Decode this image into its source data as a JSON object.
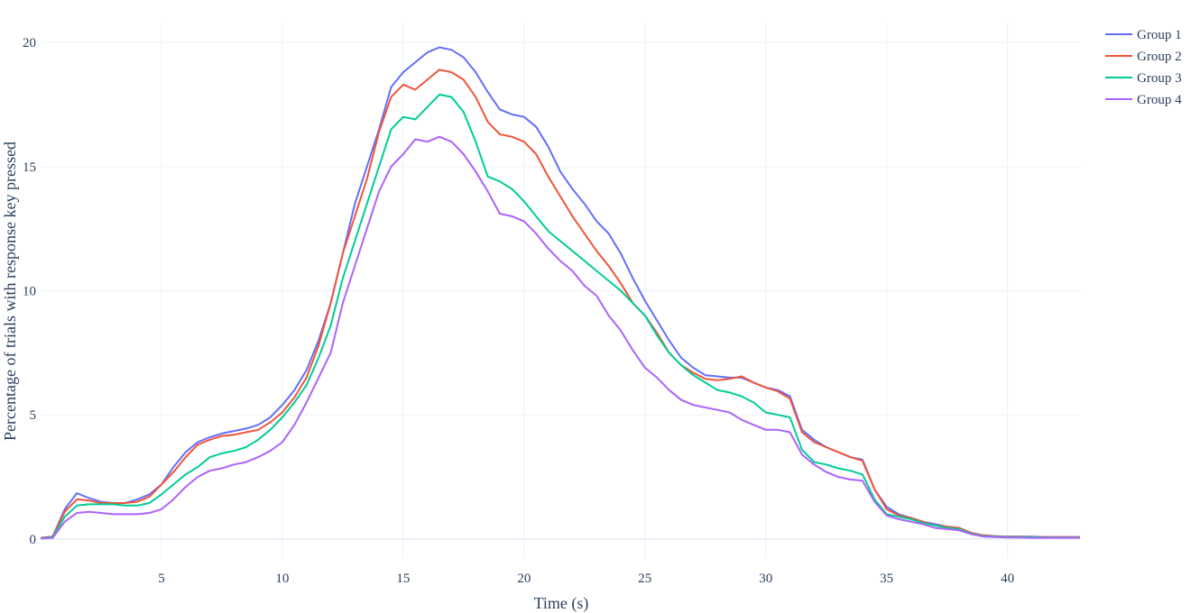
{
  "chart_data": {
    "type": "line",
    "xlabel": "Time (s)",
    "ylabel": "Percentage of trials with response key pressed",
    "xlim": [
      0,
      43
    ],
    "ylim": [
      -0.8,
      20.8
    ],
    "xticks": [
      5,
      10,
      15,
      20,
      25,
      30,
      35,
      40
    ],
    "yticks": [
      0,
      5,
      10,
      15,
      20
    ],
    "grid": true,
    "legend_position": "top-right",
    "x": [
      0,
      0.5,
      1,
      1.5,
      2,
      2.5,
      3,
      3.5,
      4,
      4.5,
      5,
      5.5,
      6,
      6.5,
      7,
      7.5,
      8,
      8.5,
      9,
      9.5,
      10,
      10.5,
      11,
      11.5,
      12,
      12.5,
      13,
      13.5,
      14,
      14.5,
      15,
      15.5,
      16,
      16.5,
      17,
      17.5,
      18,
      18.5,
      19,
      19.5,
      20,
      20.5,
      21,
      21.5,
      22,
      22.5,
      23,
      23.5,
      24,
      24.5,
      25,
      25.5,
      26,
      26.5,
      27,
      27.5,
      28,
      28.5,
      29,
      29.5,
      30,
      30.5,
      31,
      31.5,
      32,
      32.5,
      33,
      33.5,
      34,
      34.5,
      35,
      35.5,
      36,
      36.5,
      37,
      37.5,
      38,
      38.5,
      39,
      39.5,
      40,
      40.5,
      41,
      41.5,
      42,
      42.5,
      43
    ],
    "series": [
      {
        "name": "Group 1",
        "color": "#636efa",
        "values": [
          0.05,
          0.1,
          1.2,
          1.85,
          1.65,
          1.5,
          1.45,
          1.45,
          1.6,
          1.8,
          2.2,
          2.9,
          3.5,
          3.9,
          4.1,
          4.25,
          4.35,
          4.45,
          4.6,
          4.9,
          5.4,
          6.0,
          6.8,
          8.0,
          9.5,
          11.5,
          13.5,
          15.0,
          16.5,
          18.2,
          18.8,
          19.2,
          19.6,
          19.8,
          19.7,
          19.4,
          18.8,
          18.0,
          17.3,
          17.1,
          17.0,
          16.6,
          15.8,
          14.8,
          14.1,
          13.5,
          12.8,
          12.3,
          11.5,
          10.5,
          9.6,
          8.8,
          8.0,
          7.3,
          6.9,
          6.6,
          6.55,
          6.5,
          6.5,
          6.3,
          6.1,
          6.0,
          5.75,
          4.4,
          4.0,
          3.7,
          3.5,
          3.3,
          3.2,
          2.0,
          1.3,
          1.0,
          0.85,
          0.7,
          0.6,
          0.5,
          0.45,
          0.25,
          0.15,
          0.12,
          0.1,
          0.1,
          0.1,
          0.08,
          0.08,
          0.08,
          0.08
        ]
      },
      {
        "name": "Group 2",
        "color": "#ef553b",
        "values": [
          0.05,
          0.1,
          1.1,
          1.6,
          1.55,
          1.45,
          1.45,
          1.45,
          1.5,
          1.7,
          2.2,
          2.7,
          3.3,
          3.8,
          4.0,
          4.15,
          4.2,
          4.3,
          4.4,
          4.7,
          5.1,
          5.7,
          6.5,
          7.8,
          9.5,
          11.5,
          13.0,
          14.5,
          16.4,
          17.8,
          18.3,
          18.1,
          18.5,
          18.9,
          18.8,
          18.5,
          17.8,
          16.8,
          16.3,
          16.2,
          16.0,
          15.5,
          14.6,
          13.8,
          13.0,
          12.3,
          11.6,
          11.0,
          10.3,
          9.5,
          9.0,
          8.3,
          7.5,
          7.0,
          6.7,
          6.45,
          6.4,
          6.45,
          6.55,
          6.3,
          6.1,
          5.95,
          5.65,
          4.3,
          3.9,
          3.7,
          3.5,
          3.3,
          3.15,
          2.0,
          1.2,
          0.95,
          0.85,
          0.7,
          0.55,
          0.5,
          0.45,
          0.25,
          0.15,
          0.12,
          0.1,
          0.1,
          0.08,
          0.08,
          0.08,
          0.08,
          0.08
        ]
      },
      {
        "name": "Group 3",
        "color": "#00cc96",
        "values": [
          0.03,
          0.08,
          0.9,
          1.35,
          1.4,
          1.4,
          1.4,
          1.35,
          1.35,
          1.45,
          1.8,
          2.2,
          2.6,
          2.9,
          3.3,
          3.45,
          3.55,
          3.7,
          4.0,
          4.4,
          4.9,
          5.5,
          6.2,
          7.3,
          8.6,
          10.5,
          12.0,
          13.5,
          15.0,
          16.5,
          17.0,
          16.9,
          17.4,
          17.9,
          17.8,
          17.2,
          16.0,
          14.6,
          14.4,
          14.1,
          13.6,
          13.0,
          12.4,
          12.0,
          11.6,
          11.2,
          10.8,
          10.4,
          10.0,
          9.5,
          9.0,
          8.2,
          7.5,
          7.0,
          6.6,
          6.3,
          6.0,
          5.9,
          5.75,
          5.5,
          5.1,
          5.0,
          4.9,
          3.6,
          3.1,
          3.0,
          2.85,
          2.75,
          2.6,
          1.6,
          1.0,
          0.9,
          0.8,
          0.65,
          0.55,
          0.45,
          0.4,
          0.22,
          0.12,
          0.1,
          0.08,
          0.08,
          0.08,
          0.06,
          0.06,
          0.06,
          0.06
        ]
      },
      {
        "name": "Group 4",
        "color": "#ab63fa",
        "values": [
          0.02,
          0.05,
          0.7,
          1.05,
          1.1,
          1.05,
          1.0,
          1.0,
          1.0,
          1.05,
          1.2,
          1.6,
          2.1,
          2.5,
          2.75,
          2.85,
          3.0,
          3.1,
          3.3,
          3.55,
          3.9,
          4.6,
          5.5,
          6.5,
          7.5,
          9.5,
          11.0,
          12.5,
          14.0,
          15.0,
          15.5,
          16.1,
          16.0,
          16.2,
          16.0,
          15.5,
          14.8,
          14.0,
          13.1,
          13.0,
          12.8,
          12.3,
          11.7,
          11.2,
          10.8,
          10.2,
          9.8,
          9.0,
          8.4,
          7.6,
          6.9,
          6.5,
          6.0,
          5.6,
          5.4,
          5.3,
          5.2,
          5.1,
          4.8,
          4.6,
          4.4,
          4.4,
          4.3,
          3.4,
          3.0,
          2.7,
          2.5,
          2.4,
          2.35,
          1.5,
          0.95,
          0.8,
          0.7,
          0.6,
          0.45,
          0.4,
          0.35,
          0.2,
          0.1,
          0.08,
          0.06,
          0.06,
          0.05,
          0.05,
          0.05,
          0.05,
          0.05
        ]
      }
    ]
  }
}
